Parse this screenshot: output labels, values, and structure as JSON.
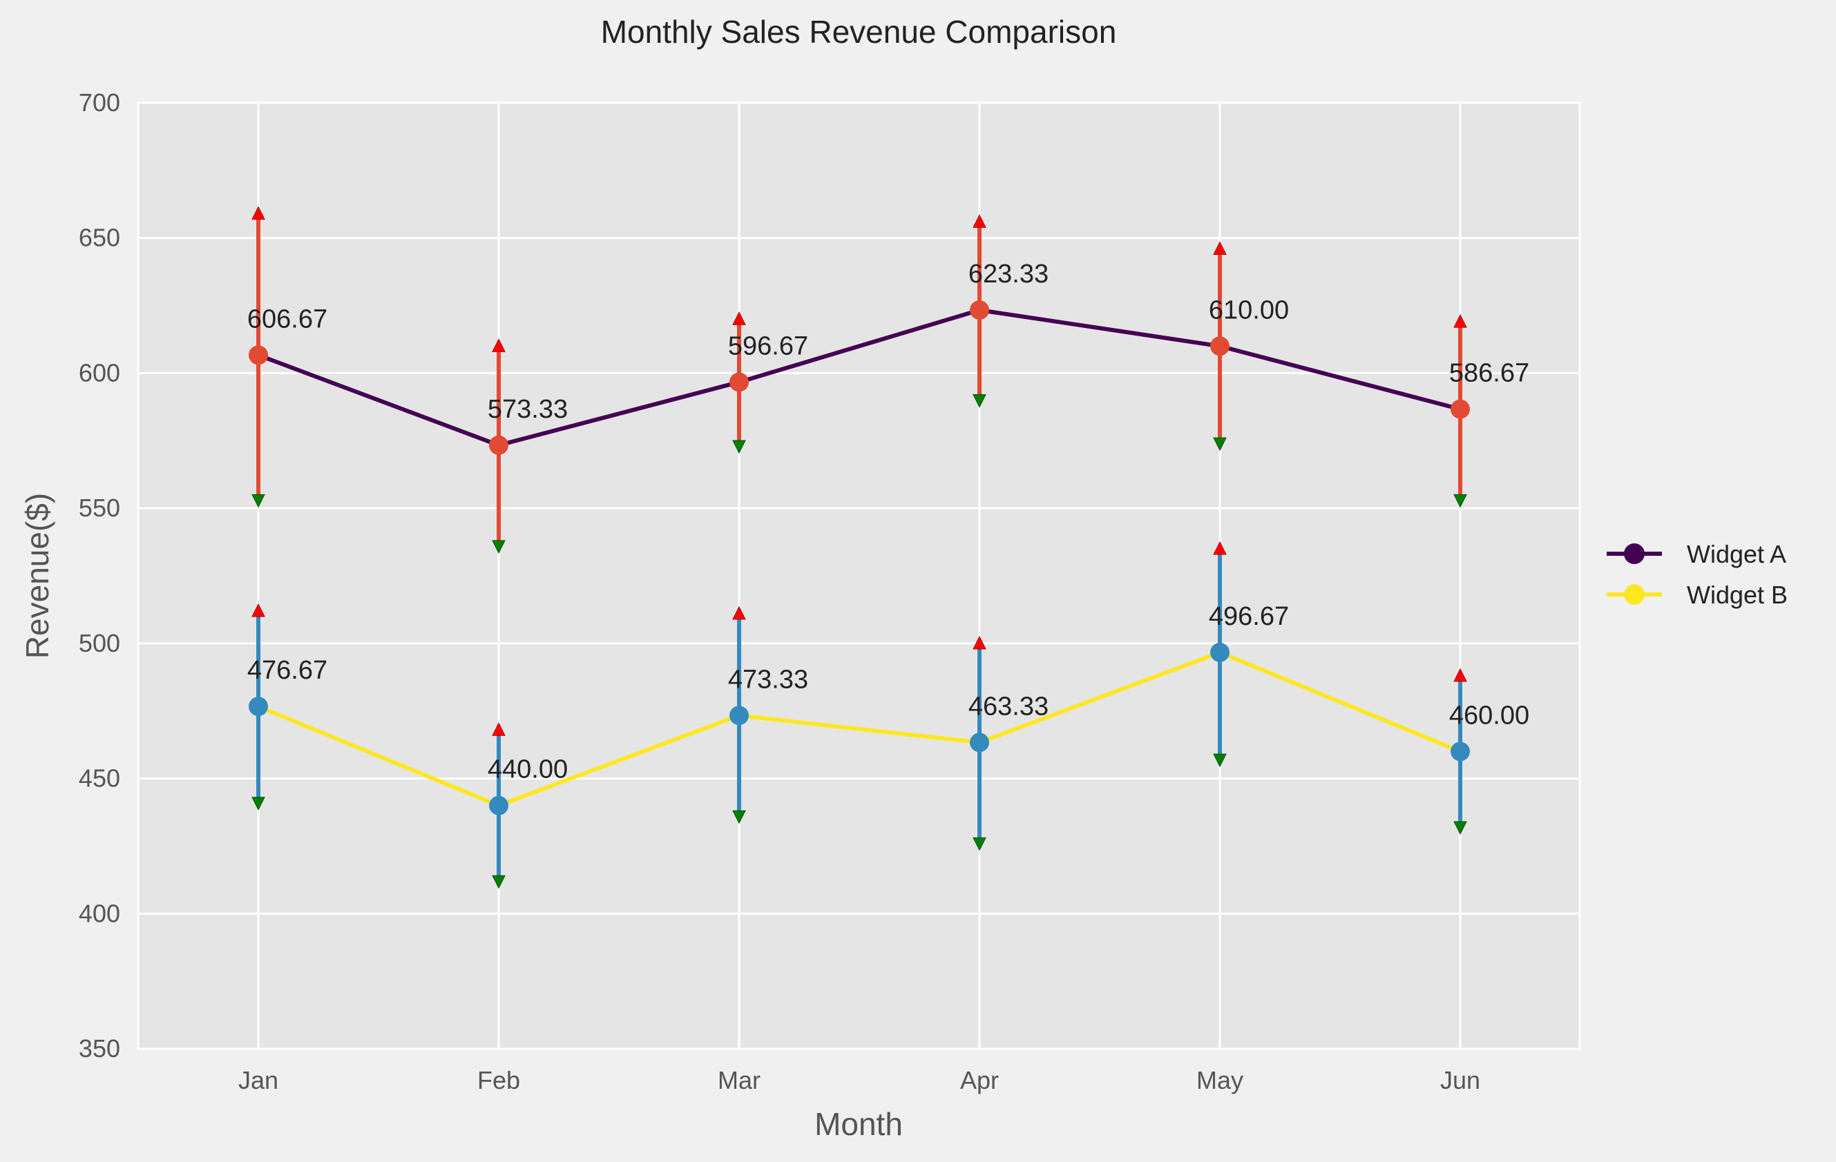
{
  "chart_data": {
    "type": "line",
    "title": "Monthly Sales Revenue Comparison",
    "xlabel": "Month",
    "ylabel": "Revenue($)",
    "categories": [
      "Jan",
      "Feb",
      "Mar",
      "Apr",
      "May",
      "Jun"
    ],
    "ylim": [
      350,
      700
    ],
    "yticks": [
      350,
      400,
      450,
      500,
      550,
      600,
      650,
      700
    ],
    "grid": true,
    "legend_position": "center right, outside plot",
    "series": [
      {
        "name": "Widget A",
        "values": [
          606.67,
          573.33,
          596.67,
          623.33,
          610.0,
          586.67
        ],
        "labels": [
          "606.67",
          "573.33",
          "596.67",
          "623.33",
          "610.00",
          "586.67"
        ],
        "upper": [
          660,
          611,
          621,
          657,
          647,
          620
        ],
        "lower": [
          552,
          535,
          572,
          589,
          573,
          552
        ],
        "line_color": "#440154",
        "marker_color": "#e24a33",
        "errorbar_color": "#e24a33"
      },
      {
        "name": "Widget B",
        "values": [
          476.67,
          440.0,
          473.33,
          463.33,
          496.67,
          460.0
        ],
        "labels": [
          "476.67",
          "440.00",
          "473.33",
          "463.33",
          "496.67",
          "460.00"
        ],
        "upper": [
          513,
          469,
          512,
          501,
          536,
          489
        ],
        "lower": [
          440,
          411,
          435,
          425,
          456,
          431
        ],
        "line_color": "#fde725",
        "marker_color": "#348abd",
        "errorbar_color": "#348abd"
      }
    ],
    "colors": {
      "background": "#f0f0f0",
      "plot_background": "#e5e5e5",
      "grid": "#ffffff",
      "up_arrow": "#ff0000",
      "down_arrow": "#008000"
    }
  }
}
